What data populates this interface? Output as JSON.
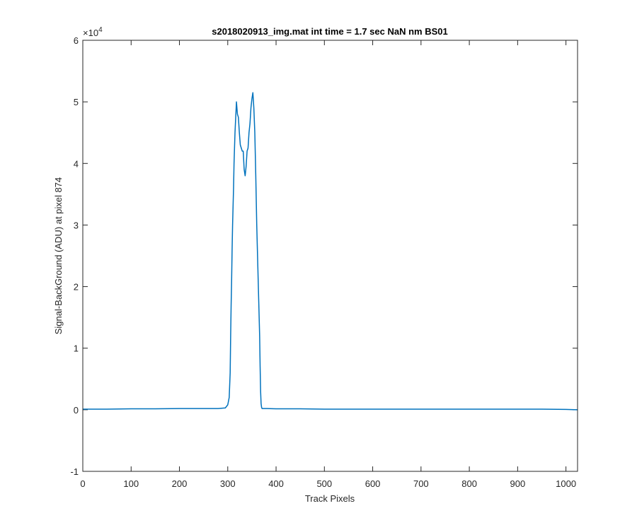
{
  "chart_data": {
    "type": "line",
    "title": "s2018020913_img.mat int time = 1.7 sec  NaN nm BS01",
    "xlabel": "Track Pixels",
    "ylabel": "Signal-BackGround (ADU) at pixel 874",
    "y_exponent_label": "×10",
    "y_exponent_power": "4",
    "xlim": [
      0,
      1024
    ],
    "ylim": [
      -10000,
      60000
    ],
    "x_ticks": [
      0,
      100,
      200,
      300,
      400,
      500,
      600,
      700,
      800,
      900,
      1000
    ],
    "x_tick_labels": [
      "0",
      "100",
      "200",
      "300",
      "400",
      "500",
      "600",
      "700",
      "800",
      "900",
      "1000"
    ],
    "y_ticks": [
      -10000,
      0,
      10000,
      20000,
      30000,
      40000,
      50000,
      60000
    ],
    "y_tick_labels": [
      "-1",
      "0",
      "1",
      "2",
      "3",
      "4",
      "5",
      "6"
    ],
    "grid": false,
    "line_color": "#0072BD",
    "axes_color": "#262626",
    "series": [
      {
        "x": [
          0,
          50,
          100,
          150,
          200,
          250,
          280,
          295,
          300,
          303,
          305,
          306,
          307,
          308,
          309,
          310,
          311,
          312,
          313,
          315,
          318,
          320,
          322,
          324,
          326,
          328,
          330,
          332,
          334,
          336,
          338,
          340,
          342,
          344,
          346,
          348,
          350,
          352,
          354,
          356,
          358,
          360,
          362,
          364,
          366,
          367,
          368,
          369,
          370,
          371,
          372,
          375,
          380,
          400,
          450,
          500,
          550,
          600,
          650,
          700,
          750,
          800,
          850,
          900,
          950,
          1000,
          1024
        ],
        "y": [
          100,
          100,
          150,
          150,
          200,
          200,
          200,
          300,
          800,
          2000,
          6000,
          12000,
          17000,
          21000,
          26000,
          30000,
          33000,
          36000,
          40000,
          45000,
          50000,
          48000,
          47500,
          45000,
          43000,
          42500,
          42000,
          42000,
          39000,
          38000,
          39500,
          42000,
          42500,
          45000,
          46500,
          49000,
          50500,
          51500,
          49000,
          45000,
          38000,
          30000,
          24000,
          18000,
          12000,
          7000,
          3000,
          1000,
          400,
          200,
          200,
          200,
          200,
          150,
          150,
          100,
          100,
          100,
          100,
          100,
          100,
          100,
          100,
          100,
          100,
          50,
          0
        ]
      }
    ]
  }
}
